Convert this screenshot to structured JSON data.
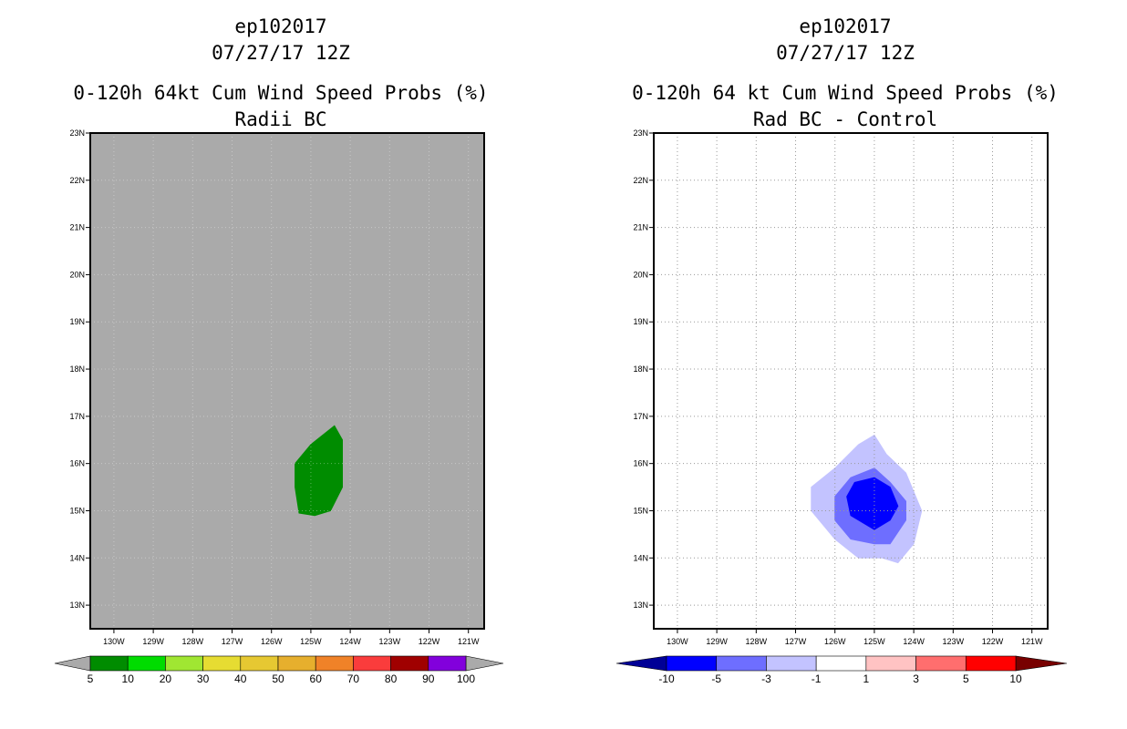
{
  "chart_data": [
    {
      "type": "heatmap",
      "storm_id": "ep102017",
      "date": "07/27/17 12Z",
      "title": "0-120h 64kt Cum Wind Speed Probs (%)",
      "subtitle": "Radii BC",
      "lon_ticks": [
        "130W",
        "129W",
        "128W",
        "127W",
        "126W",
        "125W",
        "124W",
        "123W",
        "122W",
        "121W"
      ],
      "lat_ticks": [
        "13N",
        "14N",
        "15N",
        "16N",
        "17N",
        "18N",
        "19N",
        "20N",
        "21N",
        "22N",
        "23N"
      ],
      "lon_range": [
        -130.6,
        -120.6
      ],
      "lat_range": [
        12.5,
        23
      ],
      "background_color": "#aaaaaa",
      "contours": [
        {
          "level": "5-10",
          "color": "#008c00",
          "outline": [
            [
              -124.4,
              16.8
            ],
            [
              -124.2,
              16.5
            ],
            [
              -124.2,
              15.5
            ],
            [
              -124.5,
              15.0
            ],
            [
              -124.9,
              14.9
            ],
            [
              -125.3,
              14.95
            ],
            [
              -125.4,
              15.5
            ],
            [
              -125.4,
              16.0
            ],
            [
              -125.0,
              16.4
            ]
          ]
        }
      ],
      "colorbar": {
        "labels": [
          "5",
          "10",
          "20",
          "30",
          "40",
          "50",
          "60",
          "70",
          "80",
          "90",
          "100"
        ],
        "colors": [
          "#008c00",
          "#00dc00",
          "#a0e632",
          "#e6dc32",
          "#e6c832",
          "#e6af2d",
          "#f08228",
          "#fa3c3c",
          "#a00000",
          "#8200dc"
        ],
        "end_color": "#aaaaaa"
      }
    },
    {
      "type": "heatmap",
      "storm_id": "ep102017",
      "date": "07/27/17 12Z",
      "title": "0-120h 64 kt Cum Wind Speed Probs (%)",
      "subtitle": "Rad BC - Control",
      "lon_ticks": [
        "130W",
        "129W",
        "128W",
        "127W",
        "126W",
        "125W",
        "124W",
        "123W",
        "122W",
        "121W"
      ],
      "lat_ticks": [
        "13N",
        "14N",
        "15N",
        "16N",
        "17N",
        "18N",
        "19N",
        "20N",
        "21N",
        "22N",
        "23N"
      ],
      "lon_range": [
        -130.6,
        -120.6
      ],
      "lat_range": [
        12.5,
        23
      ],
      "background_color": "#ffffff",
      "grid": true,
      "contours": [
        {
          "level": "-3 to -1",
          "color": "#c3c3ff",
          "outline": [
            [
              -125.0,
              16.6
            ],
            [
              -124.7,
              16.2
            ],
            [
              -124.2,
              15.8
            ],
            [
              -123.8,
              15.0
            ],
            [
              -124.0,
              14.3
            ],
            [
              -124.4,
              13.9
            ],
            [
              -124.8,
              14.0
            ],
            [
              -125.4,
              14.0
            ],
            [
              -126.0,
              14.4
            ],
            [
              -126.6,
              15.0
            ],
            [
              -126.6,
              15.5
            ],
            [
              -126.0,
              15.9
            ],
            [
              -125.4,
              16.4
            ]
          ]
        },
        {
          "level": "-5 to -3",
          "color": "#6e6eff",
          "outline": [
            [
              -125.0,
              15.9
            ],
            [
              -124.6,
              15.6
            ],
            [
              -124.2,
              15.2
            ],
            [
              -124.2,
              14.8
            ],
            [
              -124.6,
              14.3
            ],
            [
              -125.0,
              14.3
            ],
            [
              -125.6,
              14.4
            ],
            [
              -126.0,
              14.8
            ],
            [
              -126.0,
              15.3
            ],
            [
              -125.6,
              15.7
            ]
          ]
        },
        {
          "level": "-10 to -5",
          "color": "#0000ff",
          "outline": [
            [
              -125.0,
              15.7
            ],
            [
              -124.6,
              15.5
            ],
            [
              -124.4,
              15.1
            ],
            [
              -124.6,
              14.8
            ],
            [
              -125.0,
              14.6
            ],
            [
              -125.6,
              14.9
            ],
            [
              -125.7,
              15.3
            ],
            [
              -125.5,
              15.6
            ]
          ]
        }
      ],
      "colorbar": {
        "labels": [
          "-10",
          "-5",
          "-3",
          "-1",
          "1",
          "3",
          "5",
          "10"
        ],
        "colors": [
          "#0000ff",
          "#6e6eff",
          "#c3c3ff",
          "#ffffff",
          "#ffc3c3",
          "#ff6e6e",
          "#ff0000"
        ],
        "low_color": "#000096",
        "high_color": "#780000"
      }
    }
  ]
}
